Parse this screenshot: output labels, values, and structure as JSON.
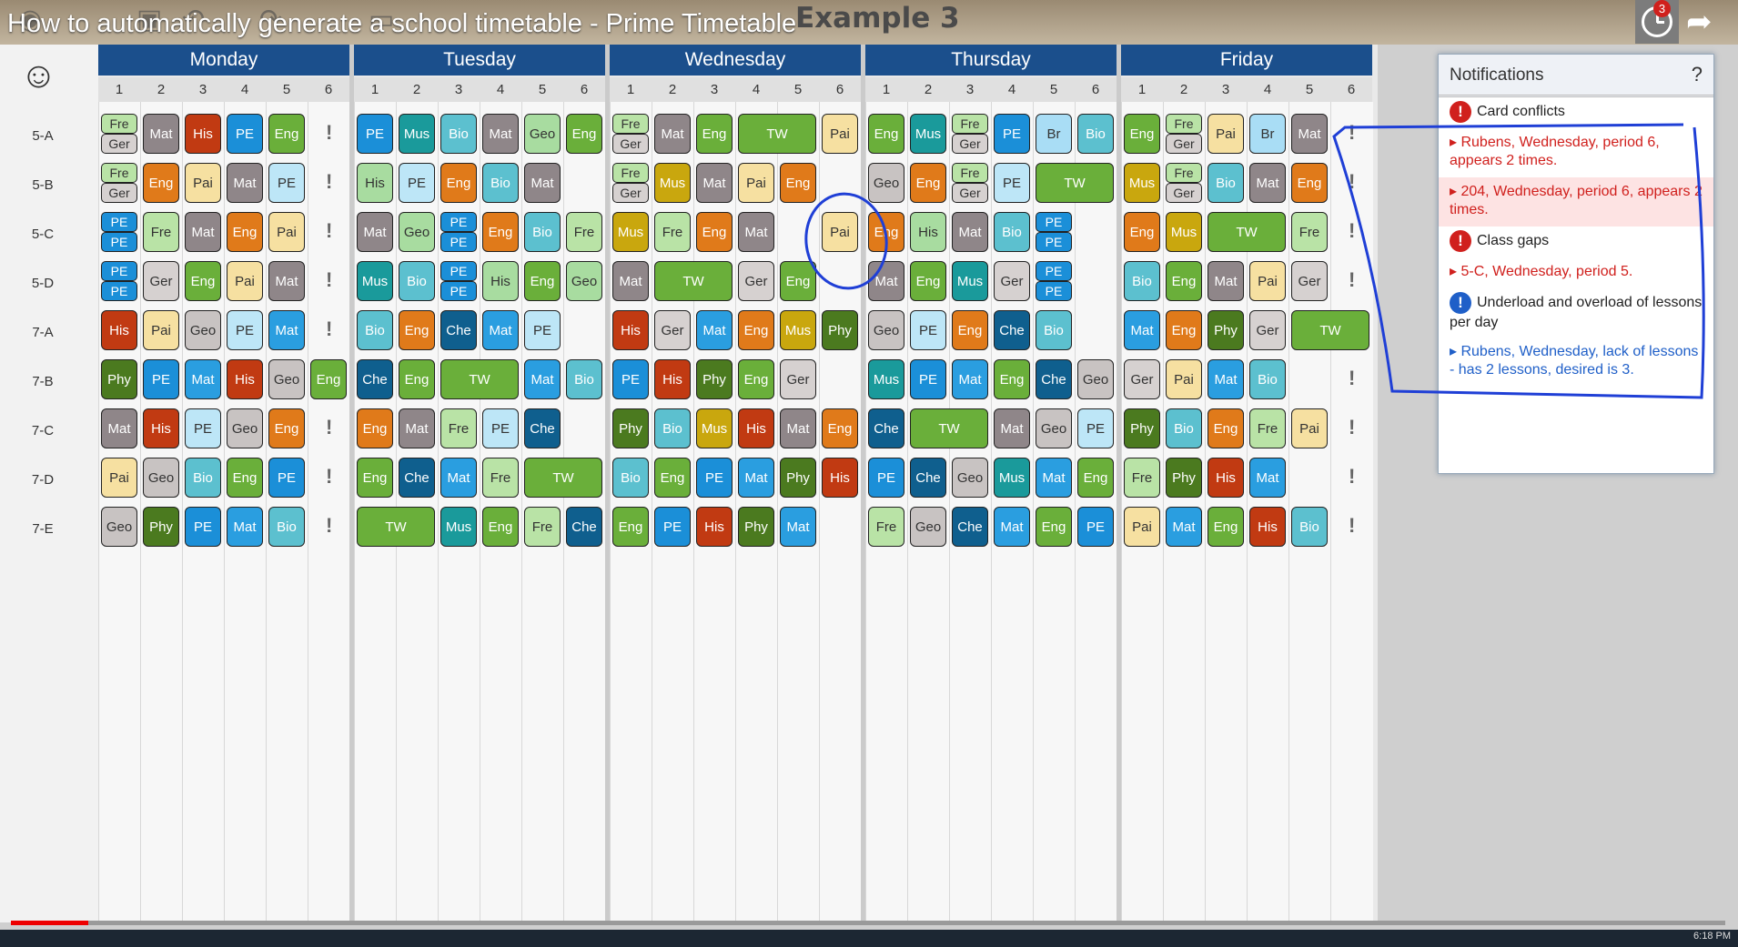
{
  "video_title": "How to automatically generate a school timetable - Prime Timetable",
  "document_title": "Example 3",
  "notification_count": "3",
  "days": [
    "Monday",
    "Tuesday",
    "Wednesday",
    "Thursday",
    "Friday"
  ],
  "periods": [
    "1",
    "2",
    "3",
    "4",
    "5",
    "6"
  ],
  "classes": [
    "5-A",
    "5-B",
    "5-C",
    "5-D",
    "7-A",
    "7-B",
    "7-C",
    "7-D",
    "7-E"
  ],
  "notifications": {
    "title": "Notifications",
    "help": "?",
    "items": [
      {
        "type": "category",
        "severity": "error",
        "text": "Card conflicts"
      },
      {
        "type": "detail",
        "severity": "error",
        "text": "Rubens, Wednesday, period 6, appears 2 times."
      },
      {
        "type": "detail",
        "severity": "error",
        "text": "204, Wednesday, period 6, appears 2 times.",
        "highlighted": true
      },
      {
        "type": "category",
        "severity": "error",
        "text": "Class gaps"
      },
      {
        "type": "detail",
        "severity": "error",
        "text": "5-C, Wednesday, period 5."
      },
      {
        "type": "category",
        "severity": "info",
        "text": "Underload and overload of lessons per day"
      },
      {
        "type": "detail",
        "severity": "info",
        "text": "Rubens, Wednesday, lack of lessons - has 2 lessons, desired is 3."
      }
    ]
  },
  "subject_colors": {
    "Mat": "#8f8689",
    "His": "#c13a12",
    "PE": "#1b8fd8",
    "Eng": "#6aaf3a",
    "Fre": "#b9e3a6",
    "Ger": "#d6d1d0",
    "Mus": "#1a9a9b",
    "Bio": "#5cc0cf",
    "Geo": "#c8c3c2",
    "Pai": "#f6e0a1",
    "Phy": "#4b7a1f",
    "Che": "#0f5f8e",
    "TW": "#6aaf3a",
    "Br": "#a9ddf5"
  },
  "timetable": {
    "Monday": [
      [
        {
          "s": "Fre",
          "b": "Ger"
        },
        {
          "s": "Mat"
        },
        {
          "s": "His"
        },
        {
          "s": "PE"
        },
        {
          "s": "Eng"
        },
        {
          "excl": true
        }
      ],
      [
        {
          "s": "Fre",
          "b": "Ger"
        },
        {
          "s": "Eng",
          "alt": "o"
        },
        {
          "s": "Pai"
        },
        {
          "s": "Mat"
        },
        {
          "s": "PE",
          "alt": "l"
        },
        {
          "excl": true
        }
      ],
      [
        {
          "s": "PE",
          "b": "PE"
        },
        {
          "s": "Fre"
        },
        {
          "s": "Mat"
        },
        {
          "s": "Eng",
          "alt": "o"
        },
        {
          "s": "Pai"
        },
        {
          "excl": true
        }
      ],
      [
        {
          "s": "PE",
          "b": "PE"
        },
        {
          "s": "Ger"
        },
        {
          "s": "Eng"
        },
        {
          "s": "Pai"
        },
        {
          "s": "Mat"
        },
        {
          "excl": true
        }
      ],
      [
        {
          "s": "His"
        },
        {
          "s": "Pai"
        },
        {
          "s": "Geo"
        },
        {
          "s": "PE",
          "alt": "l"
        },
        {
          "s": "Mat",
          "alt": "b"
        },
        {
          "excl": true
        }
      ],
      [
        {
          "s": "Phy"
        },
        {
          "s": "PE"
        },
        {
          "s": "Mat",
          "alt": "b"
        },
        {
          "s": "His"
        },
        {
          "s": "Geo"
        },
        {
          "s": "Eng"
        }
      ],
      [
        {
          "s": "Mat"
        },
        {
          "s": "His"
        },
        {
          "s": "PE",
          "alt": "l"
        },
        {
          "s": "Geo"
        },
        {
          "s": "Eng",
          "alt": "o"
        },
        {
          "excl": true
        }
      ],
      [
        {
          "s": "Pai"
        },
        {
          "s": "Geo"
        },
        {
          "s": "Bio"
        },
        {
          "s": "Eng"
        },
        {
          "s": "PE"
        },
        {
          "excl": true
        }
      ],
      [
        {
          "s": "Geo"
        },
        {
          "s": "Phy"
        },
        {
          "s": "PE"
        },
        {
          "s": "Mat",
          "alt": "b"
        },
        {
          "s": "Bio"
        },
        {
          "excl": true
        }
      ]
    ],
    "Tuesday": [
      [
        {
          "s": "PE"
        },
        {
          "s": "Mus"
        },
        {
          "s": "Bio"
        },
        {
          "s": "Mat"
        },
        {
          "s": "Geo",
          "alt": "g"
        },
        {
          "s": "Eng"
        }
      ],
      [
        {
          "s": "His",
          "alt": "g"
        },
        {
          "s": "PE",
          "alt": "l"
        },
        {
          "s": "Eng",
          "alt": "o"
        },
        {
          "s": "Bio"
        },
        {
          "s": "Mat"
        },
        {}
      ],
      [
        {
          "s": "Mat"
        },
        {
          "s": "Geo",
          "alt": "g"
        },
        {
          "s": "PE",
          "b": "PE"
        },
        {
          "s": "Eng",
          "alt": "o"
        },
        {
          "s": "Bio"
        },
        {
          "s": "Fre"
        }
      ],
      [
        {
          "s": "Mus"
        },
        {
          "s": "Bio"
        },
        {
          "s": "PE",
          "b": "PE"
        },
        {
          "s": "His",
          "alt": "g"
        },
        {
          "s": "Eng"
        },
        {
          "s": "Geo",
          "alt": "g"
        }
      ],
      [
        {
          "s": "Bio"
        },
        {
          "s": "Eng",
          "alt": "o"
        },
        {
          "s": "Che"
        },
        {
          "s": "Mat",
          "alt": "b"
        },
        {
          "s": "PE",
          "alt": "l"
        },
        {}
      ],
      [
        {
          "s": "Che"
        },
        {
          "s": "Eng"
        },
        {
          "s": "TW",
          "span": 2
        },
        {
          "s": "Mat",
          "alt": "b"
        },
        {
          "s": "Bio"
        }
      ],
      [
        {
          "s": "Eng",
          "alt": "o"
        },
        {
          "s": "Mat"
        },
        {
          "s": "Fre"
        },
        {
          "s": "PE",
          "alt": "l"
        },
        {
          "s": "Che"
        },
        {}
      ],
      [
        {
          "s": "Eng"
        },
        {
          "s": "Che"
        },
        {
          "s": "Mat",
          "alt": "b"
        },
        {
          "s": "Fre"
        },
        {
          "s": "TW",
          "span": 2
        }
      ],
      [
        {
          "s": "TW",
          "span": 2
        },
        {
          "s": "Mus"
        },
        {
          "s": "Eng"
        },
        {
          "s": "Fre"
        },
        {
          "s": "Che"
        }
      ]
    ],
    "Wednesday": [
      [
        {
          "s": "Fre",
          "b": "Ger"
        },
        {
          "s": "Mat"
        },
        {
          "s": "Eng"
        },
        {
          "s": "TW",
          "span": 2
        },
        {
          "s": "Pai"
        }
      ],
      [
        {
          "s": "Fre",
          "b": "Ger"
        },
        {
          "s": "Mus",
          "alt": "y"
        },
        {
          "s": "Mat"
        },
        {
          "s": "Pai"
        },
        {
          "s": "Eng",
          "alt": "o"
        },
        {}
      ],
      [
        {
          "s": "Mus",
          "alt": "y"
        },
        {
          "s": "Fre"
        },
        {
          "s": "Eng",
          "alt": "o"
        },
        {
          "s": "Mat"
        },
        {},
        {
          "s": "Pai"
        }
      ],
      [
        {
          "s": "Mat"
        },
        {
          "s": "TW",
          "span": 2
        },
        {
          "s": "Ger"
        },
        {
          "s": "Eng"
        },
        {}
      ],
      [
        {
          "s": "His"
        },
        {
          "s": "Ger"
        },
        {
          "s": "Mat",
          "alt": "b"
        },
        {
          "s": "Eng",
          "alt": "o"
        },
        {
          "s": "Mus",
          "alt": "y"
        },
        {
          "s": "Phy"
        }
      ],
      [
        {
          "s": "PE"
        },
        {
          "s": "His"
        },
        {
          "s": "Phy"
        },
        {
          "s": "Eng"
        },
        {
          "s": "Ger"
        },
        {}
      ],
      [
        {
          "s": "Phy"
        },
        {
          "s": "Bio"
        },
        {
          "s": "Mus",
          "alt": "y"
        },
        {
          "s": "His"
        },
        {
          "s": "Mat"
        },
        {
          "s": "Eng",
          "alt": "o"
        }
      ],
      [
        {
          "s": "Bio"
        },
        {
          "s": "Eng"
        },
        {
          "s": "PE"
        },
        {
          "s": "Mat",
          "alt": "b"
        },
        {
          "s": "Phy"
        },
        {
          "s": "His"
        }
      ],
      [
        {
          "s": "Eng"
        },
        {
          "s": "PE"
        },
        {
          "s": "His"
        },
        {
          "s": "Phy"
        },
        {
          "s": "Mat",
          "alt": "b"
        },
        {}
      ]
    ],
    "Thursday": [
      [
        {
          "s": "Eng"
        },
        {
          "s": "Mus"
        },
        {
          "s": "Fre",
          "b": "Ger"
        },
        {
          "s": "PE"
        },
        {
          "s": "Br"
        },
        {
          "s": "Bio"
        }
      ],
      [
        {
          "s": "Geo"
        },
        {
          "s": "Eng",
          "alt": "o"
        },
        {
          "s": "Fre",
          "b": "Ger"
        },
        {
          "s": "PE",
          "alt": "l"
        },
        {
          "s": "TW",
          "span": 2
        }
      ],
      [
        {
          "s": "Eng",
          "alt": "o"
        },
        {
          "s": "His",
          "alt": "g"
        },
        {
          "s": "Mat"
        },
        {
          "s": "Bio"
        },
        {
          "s": "PE",
          "b": "PE"
        },
        {}
      ],
      [
        {
          "s": "Mat"
        },
        {
          "s": "Eng"
        },
        {
          "s": "Mus"
        },
        {
          "s": "Ger"
        },
        {
          "s": "PE",
          "b": "PE"
        },
        {}
      ],
      [
        {
          "s": "Geo"
        },
        {
          "s": "PE",
          "alt": "l"
        },
        {
          "s": "Eng",
          "alt": "o"
        },
        {
          "s": "Che"
        },
        {
          "s": "Bio"
        },
        {}
      ],
      [
        {
          "s": "Mus"
        },
        {
          "s": "PE"
        },
        {
          "s": "Mat",
          "alt": "b"
        },
        {
          "s": "Eng"
        },
        {
          "s": "Che"
        },
        {
          "s": "Geo"
        }
      ],
      [
        {
          "s": "Che"
        },
        {
          "s": "TW",
          "span": 2
        },
        {
          "s": "Mat"
        },
        {
          "s": "Geo"
        },
        {
          "s": "PE",
          "alt": "l"
        }
      ],
      [
        {
          "s": "PE"
        },
        {
          "s": "Che"
        },
        {
          "s": "Geo"
        },
        {
          "s": "Mus"
        },
        {
          "s": "Mat",
          "alt": "b"
        },
        {
          "s": "Eng"
        }
      ],
      [
        {
          "s": "Fre"
        },
        {
          "s": "Geo"
        },
        {
          "s": "Che"
        },
        {
          "s": "Mat",
          "alt": "b"
        },
        {
          "s": "Eng"
        },
        {
          "s": "PE"
        }
      ]
    ],
    "Friday": [
      [
        {
          "s": "Eng"
        },
        {
          "s": "Fre",
          "b": "Ger"
        },
        {
          "s": "Pai"
        },
        {
          "s": "Br"
        },
        {
          "s": "Mat"
        },
        {
          "excl": true
        }
      ],
      [
        {
          "s": "Mus",
          "alt": "y"
        },
        {
          "s": "Fre",
          "b": "Ger"
        },
        {
          "s": "Bio"
        },
        {
          "s": "Mat"
        },
        {
          "s": "Eng",
          "alt": "o"
        },
        {
          "excl": true
        }
      ],
      [
        {
          "s": "Eng",
          "alt": "o"
        },
        {
          "s": "Mus",
          "alt": "y"
        },
        {
          "s": "TW",
          "span": 2
        },
        {
          "s": "Fre"
        },
        {
          "excl": true
        }
      ],
      [
        {
          "s": "Bio"
        },
        {
          "s": "Eng"
        },
        {
          "s": "Mat"
        },
        {
          "s": "Pai"
        },
        {
          "s": "Ger"
        },
        {
          "excl": true
        }
      ],
      [
        {
          "s": "Mat",
          "alt": "b"
        },
        {
          "s": "Eng",
          "alt": "o"
        },
        {
          "s": "Phy"
        },
        {
          "s": "Ger"
        },
        {
          "s": "TW",
          "span": 2
        }
      ],
      [
        {
          "s": "Ger"
        },
        {
          "s": "Pai"
        },
        {
          "s": "Mat",
          "alt": "b"
        },
        {
          "s": "Bio"
        },
        {},
        {
          "excl": true
        }
      ],
      [
        {
          "s": "Phy"
        },
        {
          "s": "Bio"
        },
        {
          "s": "Eng",
          "alt": "o"
        },
        {
          "s": "Fre"
        },
        {
          "s": "Pai"
        },
        {
          "excl": true
        }
      ],
      [
        {
          "s": "Fre"
        },
        {
          "s": "Phy"
        },
        {
          "s": "His"
        },
        {
          "s": "Mat",
          "alt": "b"
        },
        {},
        {
          "excl": true
        }
      ],
      [
        {
          "s": "Pai"
        },
        {
          "s": "Mat",
          "alt": "b"
        },
        {
          "s": "Eng"
        },
        {
          "s": "His"
        },
        {
          "s": "Bio"
        },
        {
          "excl": true
        }
      ]
    ]
  },
  "alt_colors": {
    "o": "#e07a1a",
    "b": "#2a9ee0",
    "l": "#bde6f7",
    "g": "#a8dca0",
    "y": "#c9a70e"
  },
  "taskbar": {
    "time": "6:18 PM"
  },
  "video_progress": 0.045
}
